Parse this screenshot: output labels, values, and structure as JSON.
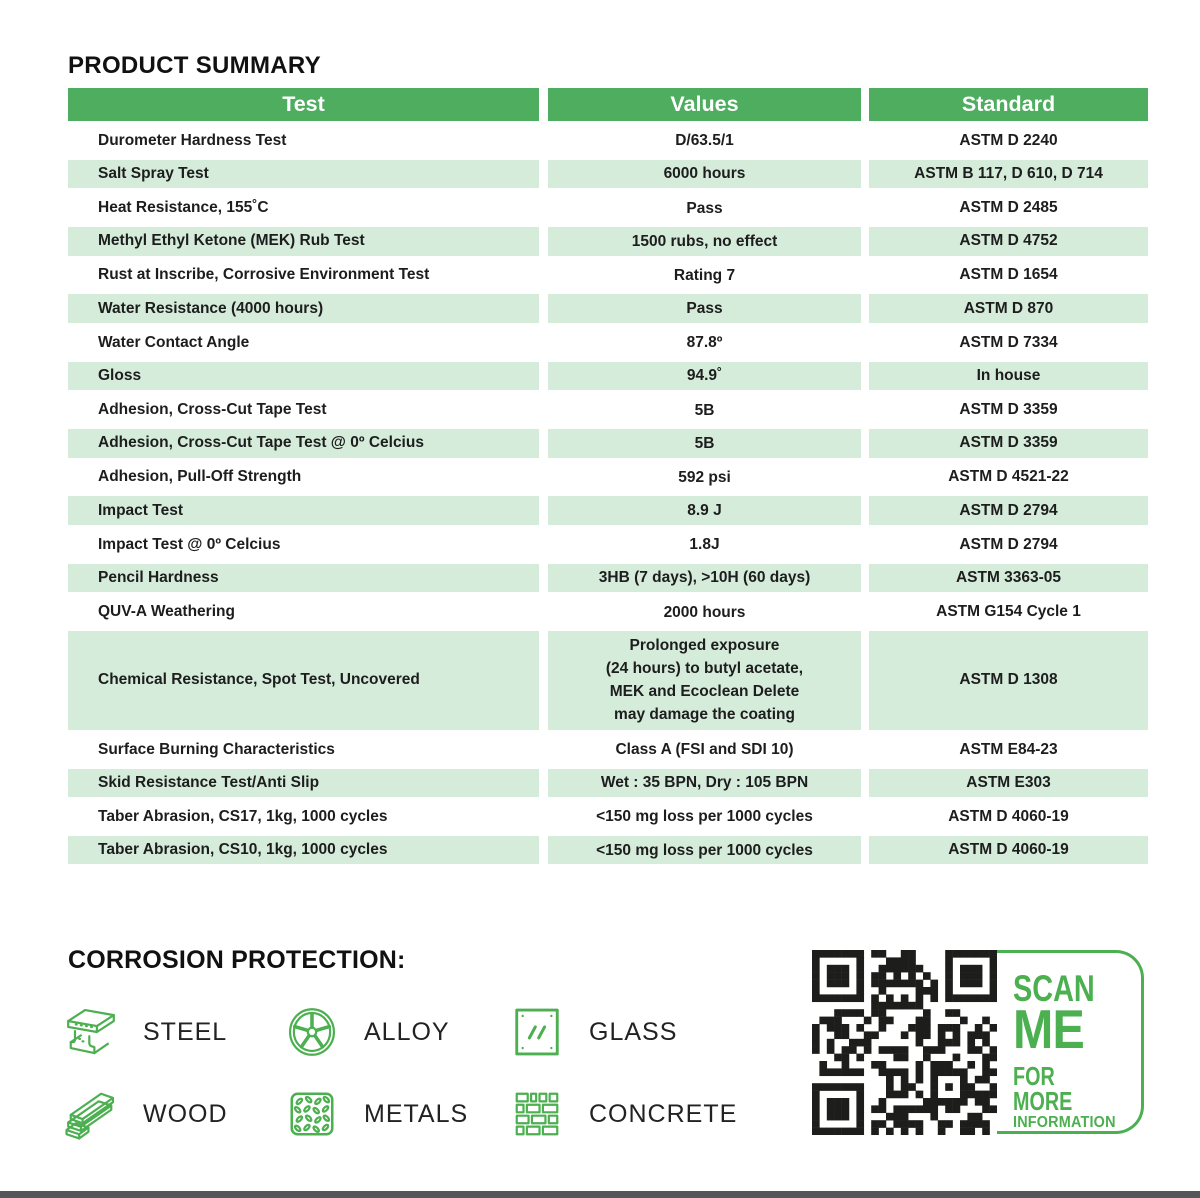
{
  "page": {
    "title": "PRODUCT SUMMARY"
  },
  "colors": {
    "header_green": "#4fad60",
    "row_green": "#d5ecdb",
    "accent_green": "#4caf50",
    "qr_black": "#1d1d1b",
    "footer_gray": "#55565a"
  },
  "table": {
    "headers": [
      "Test",
      "Values",
      "Standard"
    ],
    "rows": [
      {
        "test": "Durometer Hardness Test",
        "value": "D/63.5/1",
        "standard": "ASTM D 2240"
      },
      {
        "test": "Salt Spray Test",
        "value": "6000 hours",
        "standard": "ASTM B 117, D 610, D 714"
      },
      {
        "test": "Heat Resistance, 155˚C",
        "value": "Pass",
        "standard": "ASTM D 2485"
      },
      {
        "test": "Methyl Ethyl Ketone (MEK) Rub Test",
        "value": "1500 rubs, no effect",
        "standard": "ASTM D 4752"
      },
      {
        "test": "Rust at Inscribe, Corrosive Environment Test",
        "value": "Rating 7",
        "standard": "ASTM D 1654"
      },
      {
        "test": "Water Resistance (4000 hours)",
        "value": "Pass",
        "standard": "ASTM D 870"
      },
      {
        "test": "Water Contact Angle",
        "value": "87.8º",
        "standard": "ASTM D 7334"
      },
      {
        "test": "Gloss",
        "value": "94.9˚",
        "standard": "In house"
      },
      {
        "test": "Adhesion, Cross-Cut Tape Test",
        "value": "5B",
        "standard": "ASTM D 3359"
      },
      {
        "test": "Adhesion, Cross-Cut Tape Test @ 0º Celcius",
        "value": "5B",
        "standard": "ASTM D 3359"
      },
      {
        "test": "Adhesion, Pull-Off Strength",
        "value": "592 psi",
        "standard": "ASTM D 4521-22"
      },
      {
        "test": "Impact Test",
        "value": "8.9 J",
        "standard": "ASTM D 2794"
      },
      {
        "test": "Impact Test @ 0º Celcius",
        "value": "1.8J",
        "standard": "ASTM D 2794"
      },
      {
        "test": "Pencil Hardness",
        "value": "3HB (7 days), >10H (60 days)",
        "standard": "ASTM 3363-05"
      },
      {
        "test": "QUV-A Weathering",
        "value": "2000 hours",
        "standard": "ASTM G154 Cycle 1"
      },
      {
        "test": "Chemical Resistance, Spot Test, Uncovered",
        "value": "Prolonged exposure\n(24 hours) to butyl acetate,\nMEK and Ecoclean Delete\nmay damage the coating",
        "standard": "ASTM D 1308"
      },
      {
        "test": "Surface Burning Characteristics",
        "value": "Class A (FSI and SDI 10)",
        "standard": "ASTM E84-23"
      },
      {
        "test": "Skid Resistance Test/Anti Slip",
        "value": "Wet : 35 BPN, Dry : 105 BPN",
        "standard": "ASTM E303"
      },
      {
        "test": "Taber Abrasion, CS17, 1kg, 1000 cycles",
        "value": "<150 mg loss per 1000 cycles",
        "standard": "ASTM D 4060-19"
      },
      {
        "test": "Taber Abrasion, CS10, 1kg, 1000 cycles",
        "value": "<150 mg loss per 1000 cycles",
        "standard": "ASTM D 4060-19"
      }
    ]
  },
  "corrosion": {
    "heading": "CORROSION PROTECTION:",
    "materials": [
      {
        "label": "STEEL",
        "icon": "steel-icon"
      },
      {
        "label": "ALLOY",
        "icon": "alloy-icon"
      },
      {
        "label": "GLASS",
        "icon": "glass-icon"
      },
      {
        "label": "WOOD",
        "icon": "wood-icon"
      },
      {
        "label": "METALS",
        "icon": "metals-icon"
      },
      {
        "label": "CONCRETE",
        "icon": "concrete-icon"
      }
    ]
  },
  "scan": {
    "line1": "SCAN",
    "line2": "ME",
    "line3": "FOR MORE",
    "line4": "INFORMATION",
    "qr_label": "qr-code"
  }
}
